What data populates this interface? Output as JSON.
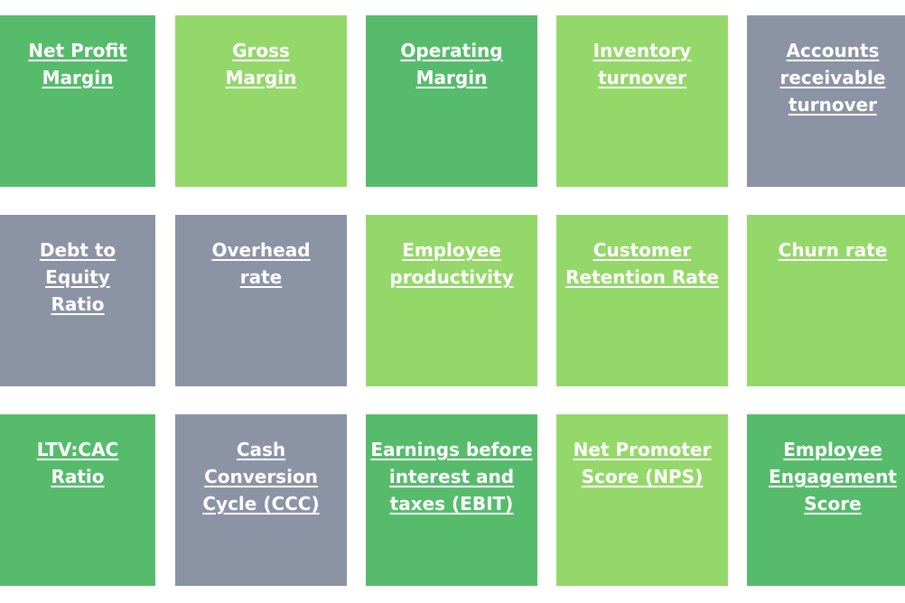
{
  "colors": {
    "dark_green": "#56bc6c",
    "light_green": "#95d86a",
    "slate": "#8b93a5",
    "text": "#ffffff"
  },
  "tiles": [
    {
      "label": "Net Profit\nMargin",
      "color": "dark_green"
    },
    {
      "label": "Gross\nMargin",
      "color": "light_green"
    },
    {
      "label": "Operating\nMargin",
      "color": "dark_green"
    },
    {
      "label": "Inventory\nturnover",
      "color": "light_green"
    },
    {
      "label": "Accounts\nreceivable\nturnover",
      "color": "slate"
    },
    {
      "label": "Debt to\nEquity\nRatio",
      "color": "slate"
    },
    {
      "label": "Overhead\nrate",
      "color": "slate"
    },
    {
      "label": "Employee\nproductivity",
      "color": "light_green"
    },
    {
      "label": "Customer\nRetention Rate",
      "color": "light_green"
    },
    {
      "label": "Churn rate",
      "color": "light_green"
    },
    {
      "label": "LTV:CAC\nRatio",
      "color": "dark_green"
    },
    {
      "label": "Cash\nConversion\nCycle (CCC)",
      "color": "slate"
    },
    {
      "label": "Earnings before\ninterest and\ntaxes (EBIT)",
      "color": "dark_green"
    },
    {
      "label": "Net Promoter\nScore (NPS)",
      "color": "light_green"
    },
    {
      "label": "Employee\nEngagement\nScore",
      "color": "dark_green"
    }
  ]
}
